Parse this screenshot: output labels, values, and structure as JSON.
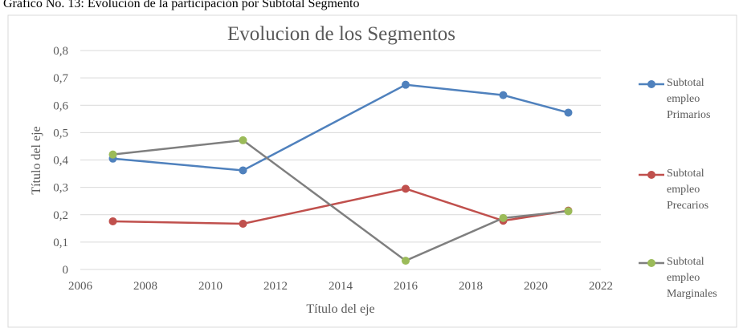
{
  "caption": "Gráfico No. 13: Evolución de la participación por Subtotal Segmento",
  "chart_data": {
    "type": "line",
    "title": "Evolucion de los Segmentos",
    "x_label": "Título del eje",
    "y_label": "Título del eje",
    "x": [
      2007,
      2011,
      2016,
      2019,
      2021
    ],
    "xlim": [
      2006,
      2022
    ],
    "xticks": [
      2006,
      2008,
      2010,
      2012,
      2014,
      2016,
      2018,
      2020,
      2022
    ],
    "ylim": [
      0,
      0.8
    ],
    "yticks": [
      0,
      {
        "value": 0.1,
        "label": "0,1"
      },
      {
        "value": 0.2,
        "label": "0,2"
      },
      {
        "value": 0.3,
        "label": "0,3"
      },
      {
        "value": 0.4,
        "label": "0,4"
      },
      {
        "value": 0.5,
        "label": "0,5"
      },
      {
        "value": 0.6,
        "label": "0,6"
      },
      {
        "value": 0.7,
        "label": "0,7"
      },
      {
        "value": 0.8,
        "label": "0,8"
      }
    ],
    "grid": true,
    "legend": "right",
    "series": [
      {
        "name": "Subtotal empleo Primarios",
        "color": "#4f81bd",
        "marker_color": "#4f81bd",
        "values": [
          0.405,
          0.362,
          0.675,
          0.637,
          0.573
        ]
      },
      {
        "name": "Subtotal empleo Precarios",
        "color": "#c0504d",
        "marker_color": "#c0504d",
        "values": [
          0.176,
          0.167,
          0.295,
          0.178,
          0.215
        ]
      },
      {
        "name": "Subtotal empleo Marginales",
        "color": "#7f7f7f",
        "marker_color": "#9bbb59",
        "values": [
          0.42,
          0.472,
          0.032,
          0.188,
          0.213
        ]
      }
    ]
  }
}
